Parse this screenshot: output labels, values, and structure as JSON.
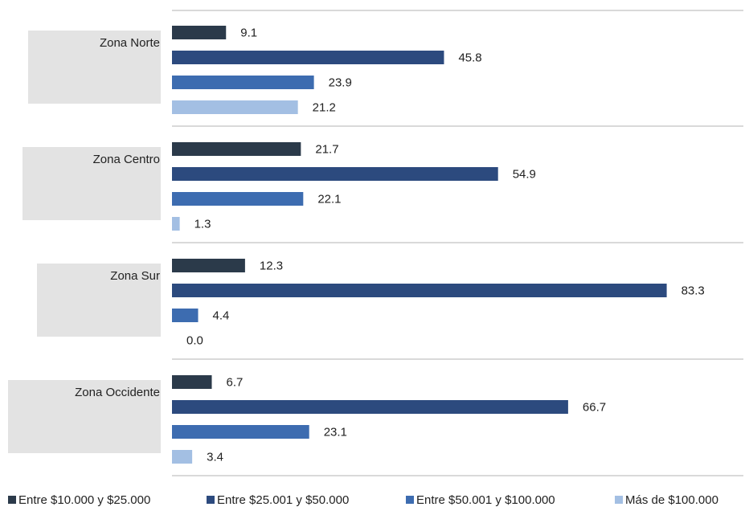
{
  "chart_data": {
    "type": "bar",
    "orientation": "horizontal",
    "title": "",
    "xlabel": "",
    "ylabel": "",
    "categories": [
      "Zona Norte",
      "Zona Centro",
      "Zona Sur",
      "Zona Occidente"
    ],
    "series": [
      {
        "name": "Entre $10.000 y $25.000",
        "color": "#2b3a4a",
        "values": [
          9.1,
          21.7,
          12.3,
          6.7
        ]
      },
      {
        "name": "Entre $25.001 y $50.000",
        "color": "#2c4a7e",
        "values": [
          45.8,
          54.9,
          83.3,
          66.7
        ]
      },
      {
        "name": "Entre $50.001 y $100.000",
        "color": "#3d6cb0",
        "values": [
          23.9,
          22.1,
          4.4,
          23.1
        ]
      },
      {
        "name": "Más de $100.000",
        "color": "#a3bfe3",
        "values": [
          21.2,
          1.3,
          0.0,
          3.4
        ]
      }
    ],
    "data_labels": [
      [
        "9.1",
        "45.8",
        "23.9",
        "21.2"
      ],
      [
        "21.7",
        "54.9",
        "22.1",
        "1.3"
      ],
      [
        "12.3",
        "83.3",
        "4.4",
        "0.0"
      ],
      [
        "6.7",
        "66.7",
        "23.1",
        "3.4"
      ]
    ],
    "xlim": [
      0,
      100
    ],
    "grid": false,
    "legend_position": "bottom",
    "axis_visible": false
  }
}
